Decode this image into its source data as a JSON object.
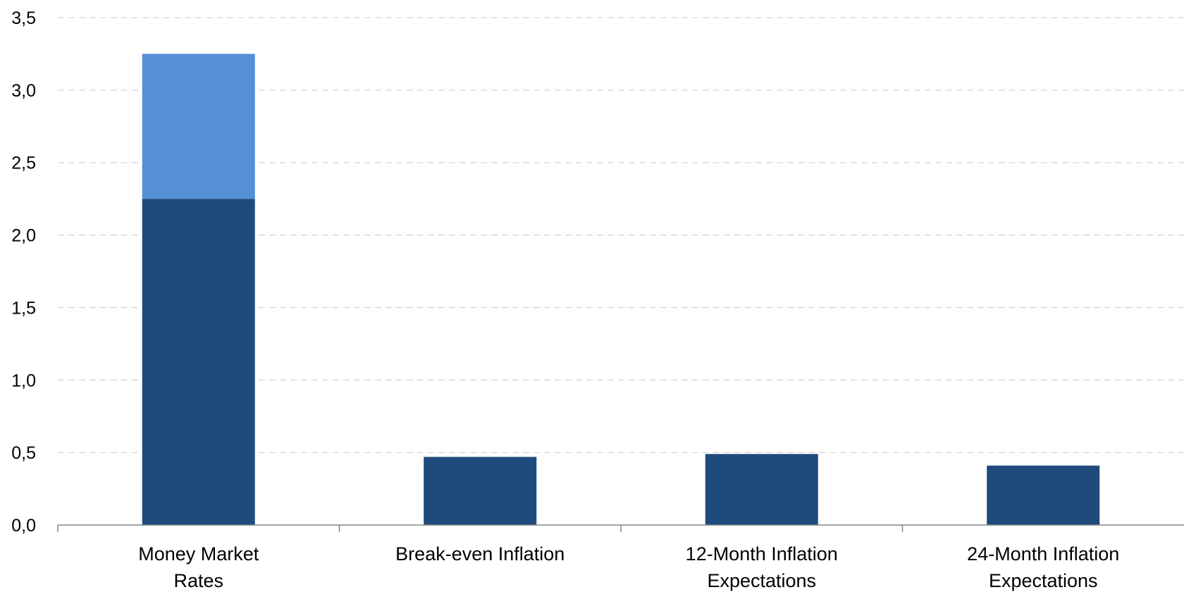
{
  "chart_data": {
    "type": "bar",
    "stacked": true,
    "categories": [
      [
        "Money Market",
        "Rates"
      ],
      [
        "Break-even Inflation"
      ],
      [
        "12-Month Inflation",
        "Expectations"
      ],
      [
        "24-Month Inflation",
        "Expectations"
      ]
    ],
    "series": [
      {
        "color": "#1f4a7c",
        "values": [
          2.25,
          0.47,
          0.49,
          0.41
        ]
      },
      {
        "color": "#5590d6",
        "values": [
          1.0,
          0,
          0,
          0
        ]
      }
    ],
    "ylim": [
      0,
      3.5
    ],
    "yticks": [
      "0,0",
      "0,5",
      "1,0",
      "1,5",
      "2,0",
      "2,5",
      "3,0",
      "3,5"
    ],
    "grid": true,
    "title": "",
    "xlabel": "",
    "ylabel": ""
  }
}
